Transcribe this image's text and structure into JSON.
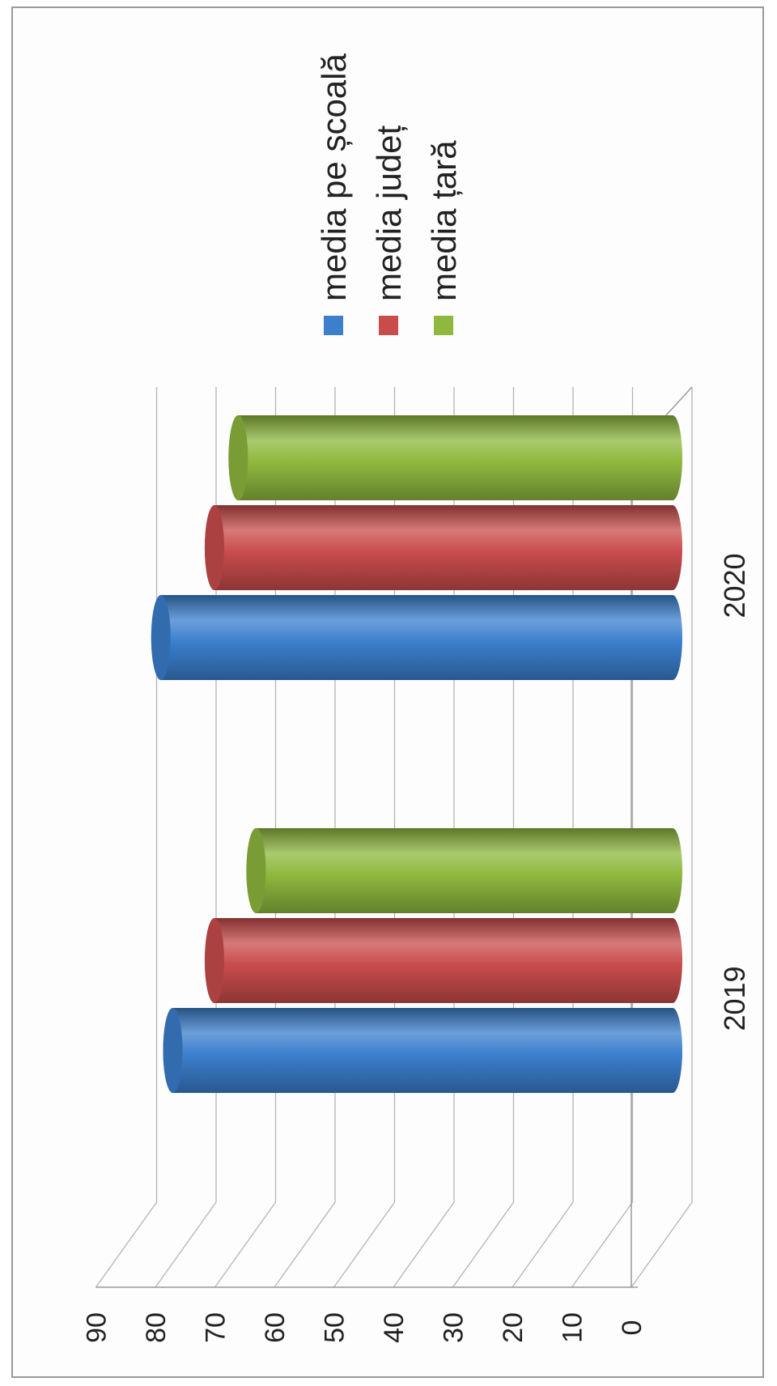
{
  "chart_data": {
    "type": "bar",
    "orientation": "horizontal-3d-cylinder",
    "categories": [
      "2019",
      "2020"
    ],
    "series": [
      {
        "name": "media pe școală",
        "values": [
          90,
          92
        ],
        "color": "#3b7fcd"
      },
      {
        "name": "media județ",
        "values": [
          83,
          83
        ],
        "color": "#c94c4c"
      },
      {
        "name": "media țară",
        "values": [
          76,
          79
        ],
        "color": "#8fb83e"
      }
    ],
    "ticks": [
      "0",
      "10",
      "20",
      "30",
      "40",
      "50",
      "60",
      "70",
      "80",
      "90"
    ],
    "ylim": [
      0,
      90
    ],
    "legend": "top-right",
    "grid": true
  }
}
